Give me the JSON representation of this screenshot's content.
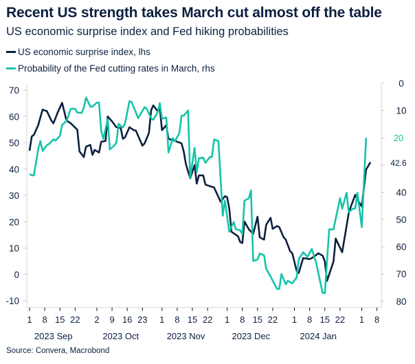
{
  "header": {
    "title": "Recent US strength takes March cut almost off the table",
    "subtitle": "US economic surprise index and Fed hiking probabilities"
  },
  "legend": [
    {
      "label": "US economic surprise index, lhs",
      "color": "#0b1f3f"
    },
    {
      "label": "Probability of the Fed cutting rates in March, rhs",
      "color": "#14c4a9"
    }
  ],
  "source": "Source: Convera, Macrobond",
  "chart_data": {
    "type": "line",
    "title": "Recent US strength takes March cut almost off the table",
    "subtitle": "US economic surprise index and Fed hiking probabilities",
    "grid": false,
    "legend_position": "top-left",
    "x_range": [
      "2023-09-01",
      "2024-02-08"
    ],
    "x_ticks": [
      {
        "date": "2023-09-01",
        "label": "1"
      },
      {
        "date": "2023-09-08",
        "label": "8"
      },
      {
        "date": "2023-09-15",
        "label": "15"
      },
      {
        "date": "2023-09-22",
        "label": "22"
      },
      {
        "date": "2023-10-02",
        "label": "2"
      },
      {
        "date": "2023-10-09",
        "label": "9"
      },
      {
        "date": "2023-10-16",
        "label": "16"
      },
      {
        "date": "2023-10-23",
        "label": "23"
      },
      {
        "date": "2023-11-01",
        "label": "1"
      },
      {
        "date": "2023-11-08",
        "label": "8"
      },
      {
        "date": "2023-11-15",
        "label": "15"
      },
      {
        "date": "2023-11-22",
        "label": "22"
      },
      {
        "date": "2023-12-01",
        "label": "1"
      },
      {
        "date": "2023-12-08",
        "label": "8"
      },
      {
        "date": "2023-12-15",
        "label": "15"
      },
      {
        "date": "2023-12-22",
        "label": "22"
      },
      {
        "date": "2024-01-01",
        "label": "1"
      },
      {
        "date": "2024-01-08",
        "label": "8"
      },
      {
        "date": "2024-01-15",
        "label": "15"
      },
      {
        "date": "2024-01-22",
        "label": "22"
      },
      {
        "date": "2024-02-01",
        "label": "1"
      },
      {
        "date": "2024-02-08",
        "label": "8"
      }
    ],
    "x_month_labels": [
      {
        "date": "2023-09-12",
        "label": "2023 Sep"
      },
      {
        "date": "2023-10-13",
        "label": "2023 Oct"
      },
      {
        "date": "2023-11-12",
        "label": "2023 Nov"
      },
      {
        "date": "2023-12-12",
        "label": "2023 Dec"
      },
      {
        "date": "2024-01-12",
        "label": "2024 Jan"
      }
    ],
    "y_left": {
      "range": [
        -10,
        70
      ],
      "ticks": [
        70,
        60,
        50,
        40,
        30,
        20,
        10,
        0,
        -10
      ]
    },
    "y_right": {
      "range": [
        0,
        80
      ],
      "inverted": true,
      "ticks": [
        0,
        10,
        40,
        50,
        60,
        70,
        80
      ]
    },
    "end_labels": [
      {
        "series": 0,
        "label": "42.6",
        "value": 42.6
      },
      {
        "series": 1,
        "label": "20",
        "value": 20
      }
    ],
    "series": [
      {
        "name": "US economic surprise index, lhs",
        "axis": "left",
        "color": "#0b1f3f",
        "points": [
          [
            "2023-09-01",
            47
          ],
          [
            "2023-09-02",
            52.4
          ],
          [
            "2023-09-03",
            53
          ],
          [
            "2023-09-05",
            56.7
          ],
          [
            "2023-09-07",
            62.6
          ],
          [
            "2023-09-09",
            62
          ],
          [
            "2023-09-11",
            58.5
          ],
          [
            "2023-09-12",
            57.4
          ],
          [
            "2023-09-14",
            61.6
          ],
          [
            "2023-09-16",
            65.2
          ],
          [
            "2023-09-18",
            58.5
          ],
          [
            "2023-09-20",
            57.4
          ],
          [
            "2023-09-23",
            55
          ],
          [
            "2023-09-24",
            46.7
          ],
          [
            "2023-09-26",
            44.6
          ],
          [
            "2023-09-27",
            48.5
          ],
          [
            "2023-09-29",
            49.2
          ],
          [
            "2023-09-30",
            45.4
          ],
          [
            "2023-10-01",
            47.3
          ],
          [
            "2023-10-03",
            46.3
          ],
          [
            "2023-10-04",
            50.4
          ],
          [
            "2023-10-06",
            50.7
          ],
          [
            "2023-10-07",
            60
          ],
          [
            "2023-10-09",
            58.1
          ],
          [
            "2023-10-11",
            55.9
          ],
          [
            "2023-10-13",
            55.6
          ],
          [
            "2023-10-14",
            51.5
          ],
          [
            "2023-10-15",
            52.1
          ],
          [
            "2023-10-17",
            55.9
          ],
          [
            "2023-10-19",
            54.8
          ],
          [
            "2023-10-20",
            54.6
          ],
          [
            "2023-10-23",
            48.9
          ],
          [
            "2023-10-24",
            49.8
          ],
          [
            "2023-10-26",
            53.7
          ],
          [
            "2023-10-27",
            62.4
          ],
          [
            "2023-10-28",
            64.2
          ],
          [
            "2023-10-30",
            62
          ],
          [
            "2023-10-31",
            63.2
          ],
          [
            "2023-11-01",
            54.8
          ],
          [
            "2023-11-03",
            56.7
          ],
          [
            "2023-11-04",
            51.5
          ],
          [
            "2023-11-07",
            50.7
          ],
          [
            "2023-11-10",
            49.8
          ],
          [
            "2023-11-11",
            46.7
          ],
          [
            "2023-11-12",
            42
          ],
          [
            "2023-11-14",
            36.5
          ],
          [
            "2023-11-16",
            41.5
          ],
          [
            "2023-11-17",
            34.5
          ],
          [
            "2023-11-18",
            37.6
          ],
          [
            "2023-11-20",
            37.6
          ],
          [
            "2023-11-21",
            34.1
          ],
          [
            "2023-11-25",
            33
          ],
          [
            "2023-11-28",
            27.6
          ],
          [
            "2023-11-30",
            29.7
          ],
          [
            "2023-12-01",
            29.3
          ],
          [
            "2023-12-02",
            25
          ],
          [
            "2023-12-03",
            16.2
          ],
          [
            "2023-12-06",
            14.5
          ],
          [
            "2023-12-07",
            12.3
          ],
          [
            "2023-12-08",
            11.9
          ],
          [
            "2023-12-09",
            20.1
          ],
          [
            "2023-12-11",
            17.1
          ],
          [
            "2023-12-13",
            15.4
          ],
          [
            "2023-12-15",
            21.9
          ],
          [
            "2023-12-16",
            14.1
          ],
          [
            "2023-12-18",
            13.2
          ],
          [
            "2023-12-19",
            18.8
          ],
          [
            "2023-12-21",
            21.5
          ],
          [
            "2023-12-22",
            17.3
          ],
          [
            "2023-12-24",
            18.4
          ],
          [
            "2023-12-25",
            18
          ],
          [
            "2023-12-27",
            14.1
          ],
          [
            "2023-12-28",
            13.2
          ],
          [
            "2023-12-30",
            8.8
          ],
          [
            "2023-12-31",
            8
          ],
          [
            "2024-01-02",
            1.4
          ],
          [
            "2024-01-03",
            0.5
          ],
          [
            "2024-01-05",
            6.2
          ],
          [
            "2024-01-08",
            5.8
          ],
          [
            "2024-01-10",
            6.7
          ],
          [
            "2024-01-12",
            8
          ],
          [
            "2024-01-14",
            7.1
          ],
          [
            "2024-01-15",
            4.9
          ],
          [
            "2024-01-16",
            -2.5
          ],
          [
            "2024-01-19",
            4.9
          ],
          [
            "2024-01-20",
            13.6
          ],
          [
            "2024-01-23",
            8.4
          ],
          [
            "2024-01-26",
            23.2
          ],
          [
            "2024-01-27",
            25.8
          ],
          [
            "2024-01-29",
            30.2
          ],
          [
            "2024-01-30",
            28.4
          ],
          [
            "2024-02-01",
            25.8
          ],
          [
            "2024-02-03",
            39.8
          ],
          [
            "2024-02-05",
            42.6
          ]
        ]
      },
      {
        "name": "Probability of the Fed cutting rates in March, rhs",
        "axis": "right",
        "color": "#14c4a9",
        "points": [
          [
            "2023-09-01",
            33.3
          ],
          [
            "2023-09-02",
            33.8
          ],
          [
            "2023-09-03",
            33.8
          ],
          [
            "2023-09-05",
            24.2
          ],
          [
            "2023-09-06",
            21.2
          ],
          [
            "2023-09-07",
            24.8
          ],
          [
            "2023-09-09",
            22.7
          ],
          [
            "2023-09-10",
            22.3
          ],
          [
            "2023-09-12",
            20.6
          ],
          [
            "2023-09-13",
            21
          ],
          [
            "2023-09-15",
            19.3
          ],
          [
            "2023-09-16",
            15.3
          ],
          [
            "2023-09-18",
            13.9
          ],
          [
            "2023-09-20",
            9.4
          ],
          [
            "2023-09-22",
            9.4
          ],
          [
            "2023-09-23",
            10.7
          ],
          [
            "2023-09-25",
            10.9
          ],
          [
            "2023-09-26",
            9
          ],
          [
            "2023-09-27",
            5.2
          ],
          [
            "2023-09-29",
            8.6
          ],
          [
            "2023-09-30",
            8.6
          ],
          [
            "2023-10-02",
            7.1
          ],
          [
            "2023-10-03",
            7.1
          ],
          [
            "2023-10-04",
            17.4
          ],
          [
            "2023-10-05",
            20.4
          ],
          [
            "2023-10-07",
            13.2
          ],
          [
            "2023-10-08",
            24.3
          ],
          [
            "2023-10-10",
            22.9
          ],
          [
            "2023-10-11",
            21.8
          ],
          [
            "2023-10-12",
            14.9
          ],
          [
            "2023-10-14",
            16.2
          ],
          [
            "2023-10-15",
            14.7
          ],
          [
            "2023-10-17",
            6.6
          ],
          [
            "2023-10-18",
            6.9
          ],
          [
            "2023-10-20",
            10.7
          ],
          [
            "2023-10-21",
            12.8
          ],
          [
            "2023-10-24",
            8.8
          ],
          [
            "2023-10-25",
            9.4
          ],
          [
            "2023-10-27",
            12.8
          ],
          [
            "2023-10-28",
            13.4
          ],
          [
            "2023-10-30",
            10.7
          ],
          [
            "2023-10-31",
            7.3
          ],
          [
            "2023-11-01",
            13
          ],
          [
            "2023-11-03",
            12.6
          ],
          [
            "2023-11-04",
            25.4
          ],
          [
            "2023-11-06",
            20.1
          ],
          [
            "2023-11-07",
            21.2
          ],
          [
            "2023-11-09",
            18.3
          ],
          [
            "2023-11-10",
            11.9
          ],
          [
            "2023-11-11",
            11.9
          ],
          [
            "2023-11-13",
            10
          ],
          [
            "2023-11-14",
            34.7
          ],
          [
            "2023-11-16",
            23.7
          ],
          [
            "2023-11-17",
            32.6
          ],
          [
            "2023-11-18",
            27.5
          ],
          [
            "2023-11-20",
            27.3
          ],
          [
            "2023-11-21",
            29.2
          ],
          [
            "2023-11-23",
            27.1
          ],
          [
            "2023-11-24",
            27.1
          ],
          [
            "2023-11-25",
            20.6
          ],
          [
            "2023-11-27",
            21.2
          ],
          [
            "2023-11-29",
            48.6
          ],
          [
            "2023-11-30",
            43.1
          ],
          [
            "2023-12-02",
            54.5
          ],
          [
            "2023-12-04",
            50.9
          ],
          [
            "2023-12-05",
            53.5
          ],
          [
            "2023-12-07",
            54
          ],
          [
            "2023-12-08",
            55.3
          ],
          [
            "2023-12-09",
            43.1
          ],
          [
            "2023-12-11",
            42.2
          ],
          [
            "2023-12-12",
            39.3
          ],
          [
            "2023-12-13",
            65.2
          ],
          [
            "2023-12-15",
            64.7
          ],
          [
            "2023-12-16",
            62.5
          ],
          [
            "2023-12-18",
            63.1
          ],
          [
            "2023-12-19",
            68.1
          ],
          [
            "2023-12-21",
            70.9
          ],
          [
            "2023-12-24",
            75.5
          ],
          [
            "2023-12-25",
            75.5
          ],
          [
            "2023-12-26",
            70
          ],
          [
            "2023-12-28",
            73.8
          ],
          [
            "2023-12-29",
            72.5
          ],
          [
            "2023-12-31",
            73.4
          ],
          [
            "2024-01-02",
            71.3
          ],
          [
            "2024-01-03",
            64.6
          ],
          [
            "2024-01-05",
            62
          ],
          [
            "2024-01-07",
            63.7
          ],
          [
            "2024-01-09",
            60.8
          ],
          [
            "2024-01-11",
            65.8
          ],
          [
            "2024-01-14",
            77
          ],
          [
            "2024-01-15",
            77
          ],
          [
            "2024-01-17",
            53.6
          ],
          [
            "2024-01-19",
            53.6
          ],
          [
            "2024-01-21",
            46
          ],
          [
            "2024-01-22",
            42.2
          ],
          [
            "2024-01-23",
            46
          ],
          [
            "2024-01-25",
            40.2
          ],
          [
            "2024-01-26",
            47.3
          ],
          [
            "2024-01-28",
            46
          ],
          [
            "2024-01-29",
            45.9
          ],
          [
            "2024-01-30",
            40.2
          ],
          [
            "2024-02-01",
            52.8
          ],
          [
            "2024-02-03",
            20
          ]
        ]
      }
    ]
  }
}
